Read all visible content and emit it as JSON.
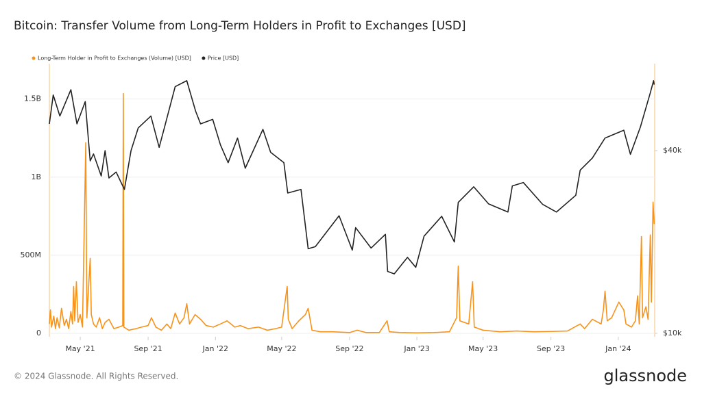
{
  "chart_data": {
    "type": "line",
    "title": "Bitcoin: Transfer Volume from Long-Term Holders in Profit to Exchanges [USD]",
    "footer": "© 2024 Glassnode. All Rights Reserved.",
    "brand": "glassnode",
    "xlim": [
      "2021-03-06",
      "2024-03-07"
    ],
    "xticks": [
      {
        "value": "2021-05-01",
        "label": "May '21"
      },
      {
        "value": "2021-09-01",
        "label": "Sep '21"
      },
      {
        "value": "2022-01-01",
        "label": "Jan '22"
      },
      {
        "value": "2022-05-01",
        "label": "May '22"
      },
      {
        "value": "2022-09-01",
        "label": "Sep '22"
      },
      {
        "value": "2023-01-01",
        "label": "Jan '23"
      },
      {
        "value": "2023-05-01",
        "label": "May '23"
      },
      {
        "value": "2023-09-01",
        "label": "Sep '23"
      },
      {
        "value": "2024-01-01",
        "label": "Jan '24"
      }
    ],
    "ylim": [
      0,
      1700000000
    ],
    "yticks": [
      0,
      {
        "value": 500000000,
        "label": "500M"
      },
      {
        "value": 1000000000,
        "label": "1B"
      },
      {
        "value": 1500000000,
        "label": "1.5B"
      }
    ],
    "y2lim": [
      10000,
      75000
    ],
    "y2scale": "log",
    "y2ticks": [
      {
        "value": 10000,
        "label": "$10k"
      },
      {
        "value": 40000,
        "label": "$40k"
      }
    ],
    "grid": true,
    "legend": "top-left",
    "series": [
      {
        "name": "Long-Term Holder in Profit to Exchanges (Volume) [USD]",
        "color": "#f7931a",
        "x": [
          "2021-03-06",
          "2021-03-08",
          "2021-03-10",
          "2021-03-14",
          "2021-03-17",
          "2021-03-20",
          "2021-03-24",
          "2021-03-28",
          "2021-04-02",
          "2021-04-06",
          "2021-04-10",
          "2021-04-14",
          "2021-04-17",
          "2021-04-19",
          "2021-04-21",
          "2021-04-24",
          "2021-04-27",
          "2021-05-01",
          "2021-05-05",
          "2021-05-11",
          "2021-05-13",
          "2021-05-19",
          "2021-05-21",
          "2021-05-25",
          "2021-05-30",
          "2021-06-05",
          "2021-06-10",
          "2021-06-15",
          "2021-06-22",
          "2021-07-01",
          "2021-07-10",
          "2021-07-17",
          "2021-07-18",
          "2021-07-19",
          "2021-07-28",
          "2021-08-10",
          "2021-08-20",
          "2021-09-01",
          "2021-09-07",
          "2021-09-15",
          "2021-09-25",
          "2021-10-05",
          "2021-10-12",
          "2021-10-20",
          "2021-10-28",
          "2021-11-05",
          "2021-11-10",
          "2021-11-15",
          "2021-11-25",
          "2021-12-05",
          "2021-12-15",
          "2021-12-28",
          "2022-01-10",
          "2022-01-22",
          "2022-02-05",
          "2022-02-15",
          "2022-03-01",
          "2022-03-20",
          "2022-04-05",
          "2022-04-20",
          "2022-05-01",
          "2022-05-09",
          "2022-05-11",
          "2022-05-13",
          "2022-05-20",
          "2022-06-01",
          "2022-06-13",
          "2022-06-18",
          "2022-06-25",
          "2022-07-10",
          "2022-08-01",
          "2022-09-01",
          "2022-09-15",
          "2022-10-01",
          "2022-10-25",
          "2022-11-08",
          "2022-11-12",
          "2022-12-01",
          "2023-01-01",
          "2023-02-01",
          "2023-03-01",
          "2023-03-14",
          "2023-03-17",
          "2023-03-20",
          "2023-04-05",
          "2023-04-12",
          "2023-04-15",
          "2023-05-01",
          "2023-06-01",
          "2023-07-01",
          "2023-08-01",
          "2023-09-01",
          "2023-10-01",
          "2023-10-24",
          "2023-11-01",
          "2023-11-15",
          "2023-12-01",
          "2023-12-05",
          "2023-12-08",
          "2023-12-12",
          "2023-12-20",
          "2024-01-02",
          "2024-01-11",
          "2024-01-15",
          "2024-01-25",
          "2024-02-01",
          "2024-02-05",
          "2024-02-08",
          "2024-02-12",
          "2024-02-14",
          "2024-02-20",
          "2024-02-24",
          "2024-02-28",
          "2024-03-01",
          "2024-03-04",
          "2024-03-06"
        ],
        "values": [
          60000000.0,
          150000000.0,
          40000000.0,
          110000000.0,
          30000000.0,
          100000000.0,
          35000000.0,
          160000000.0,
          50000000.0,
          90000000.0,
          30000000.0,
          140000000.0,
          60000000.0,
          300000000.0,
          80000000.0,
          330000000.0,
          70000000.0,
          120000000.0,
          40000000.0,
          1220000000.0,
          100000000.0,
          480000000.0,
          120000000.0,
          60000000.0,
          40000000.0,
          100000000.0,
          30000000.0,
          70000000.0,
          90000000.0,
          30000000.0,
          40000000.0,
          50000000.0,
          1535000000.0,
          40000000.0,
          20000000.0,
          30000000.0,
          40000000.0,
          50000000.0,
          100000000.0,
          40000000.0,
          20000000.0,
          60000000.0,
          30000000.0,
          130000000.0,
          60000000.0,
          100000000.0,
          190000000.0,
          60000000.0,
          120000000.0,
          90000000.0,
          50000000.0,
          40000000.0,
          60000000.0,
          80000000.0,
          40000000.0,
          50000000.0,
          30000000.0,
          40000000.0,
          20000000.0,
          30000000.0,
          40000000.0,
          250000000.0,
          300000000.0,
          90000000.0,
          30000000.0,
          80000000.0,
          120000000.0,
          160000000.0,
          20000000.0,
          10000000.0,
          10000000.0,
          5000000.0,
          20000000.0,
          5000000.0,
          5000000.0,
          80000000.0,
          10000000.0,
          5000000.0,
          3000000.0,
          5000000.0,
          10000000.0,
          100000000.0,
          430000000.0,
          80000000.0,
          60000000.0,
          330000000.0,
          40000000.0,
          20000000.0,
          10000000.0,
          15000000.0,
          10000000.0,
          12000000.0,
          15000000.0,
          60000000.0,
          30000000.0,
          90000000.0,
          60000000.0,
          150000000.0,
          270000000.0,
          80000000.0,
          100000000.0,
          200000000.0,
          150000000.0,
          60000000.0,
          40000000.0,
          80000000.0,
          240000000.0,
          60000000.0,
          620000000.0,
          100000000.0,
          170000000.0,
          90000000.0,
          630000000.0,
          200000000.0,
          840000000.0,
          700000000.0
        ]
      },
      {
        "name": "Price [USD]",
        "color": "#222222",
        "axis": "y2",
        "x": [
          "2021-03-06",
          "2021-03-13",
          "2021-03-25",
          "2021-04-14",
          "2021-04-25",
          "2021-05-10",
          "2021-05-19",
          "2021-05-25",
          "2021-06-08",
          "2021-06-15",
          "2021-06-22",
          "2021-07-05",
          "2021-07-20",
          "2021-08-01",
          "2021-08-14",
          "2021-09-06",
          "2021-09-21",
          "2021-10-01",
          "2021-10-20",
          "2021-11-10",
          "2021-11-26",
          "2021-12-05",
          "2021-12-27",
          "2022-01-10",
          "2022-01-24",
          "2022-02-10",
          "2022-02-24",
          "2022-03-28",
          "2022-04-11",
          "2022-05-05",
          "2022-05-12",
          "2022-06-05",
          "2022-06-18",
          "2022-07-01",
          "2022-08-13",
          "2022-09-06",
          "2022-09-12",
          "2022-10-10",
          "2022-11-05",
          "2022-11-09",
          "2022-11-21",
          "2022-12-15",
          "2022-12-30",
          "2023-01-14",
          "2023-02-15",
          "2023-03-10",
          "2023-03-17",
          "2023-04-14",
          "2023-05-11",
          "2023-06-15",
          "2023-06-23",
          "2023-07-13",
          "2023-08-17",
          "2023-09-11",
          "2023-10-16",
          "2023-10-24",
          "2023-11-15",
          "2023-12-08",
          "2024-01-11",
          "2024-01-23",
          "2024-02-10",
          "2024-02-28",
          "2024-03-05",
          "2024-03-06"
        ],
        "values": [
          49000,
          61000,
          52000,
          63500,
          49000,
          58000,
          37000,
          39000,
          33000,
          40000,
          32500,
          34000,
          29800,
          40000,
          47500,
          52000,
          41000,
          48000,
          65000,
          68000,
          54000,
          49000,
          50700,
          41800,
          36500,
          44000,
          35000,
          47000,
          39500,
          36500,
          29000,
          29800,
          19000,
          19300,
          24400,
          18800,
          22300,
          19100,
          21200,
          16000,
          15700,
          17800,
          16500,
          20900,
          24300,
          20000,
          27000,
          30400,
          26700,
          25100,
          30600,
          31400,
          26600,
          25100,
          28500,
          34500,
          37800,
          44000,
          46700,
          38900,
          47800,
          62000,
          68000,
          66000
        ]
      }
    ]
  }
}
